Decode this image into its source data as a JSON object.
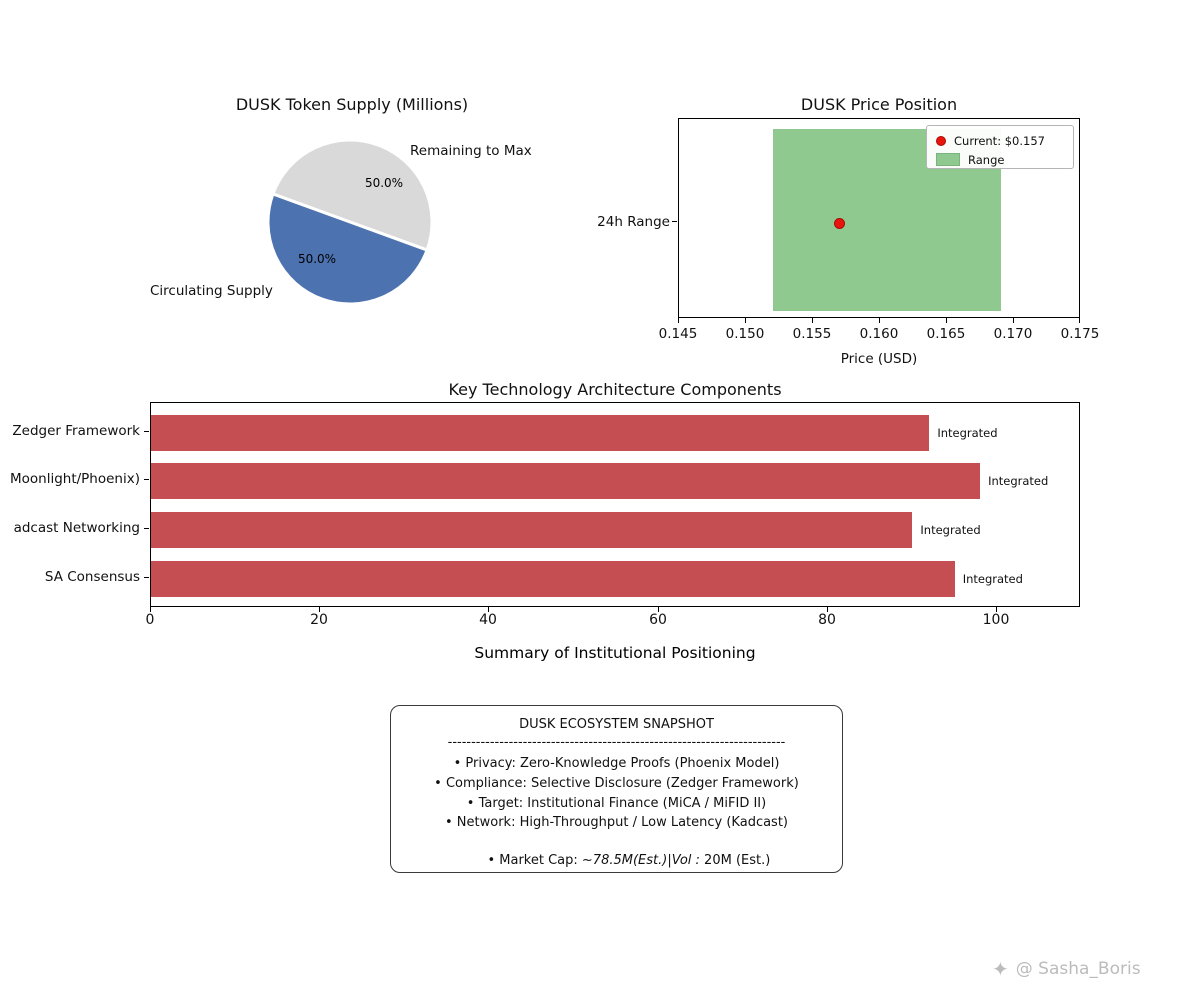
{
  "colors": {
    "pie_circulating": "#4c72b0",
    "pie_remaining": "#d9d9d9",
    "bar_red": "#c44e52",
    "range_green": "#8fc98f",
    "current_dot_red": "#e8150d",
    "watermark_gray": "#bcbcbc"
  },
  "pie": {
    "title": "DUSK Token Supply (Millions)",
    "label_remaining": "Remaining to Max",
    "label_circulating": "Circulating Supply",
    "pct_remaining": "50.0%",
    "pct_circulating": "50.0%"
  },
  "scatter": {
    "title": "DUSK Price Position",
    "ytick": "24h Range",
    "xlabel": "Price (USD)",
    "xticks": [
      "0.145",
      "0.150",
      "0.155",
      "0.160",
      "0.165",
      "0.170",
      "0.175"
    ],
    "legend": {
      "current": "Current: $0.157",
      "range": "Range"
    }
  },
  "bars": {
    "title": "Key Technology Architecture Components",
    "xlabel": "Summary of Institutional Positioning",
    "xticks": [
      "0",
      "20",
      "40",
      "60",
      "80",
      "100"
    ],
    "rows": [
      {
        "label": "Zedger Framework",
        "value": 92,
        "note": "Integrated"
      },
      {
        "label": "Moonlight/Phoenix)",
        "value": 98,
        "note": "Integrated"
      },
      {
        "label": "adcast Networking",
        "value": 90,
        "note": "Integrated"
      },
      {
        "label": "SA Consensus",
        "value": 95,
        "note": "Integrated"
      }
    ]
  },
  "snapshot": {
    "title": "DUSK ECOSYSTEM SNAPSHOT",
    "divider": "------------------------------------------------------------------------",
    "lines": [
      "• Privacy: Zero-Knowledge Proofs (Phoenix Model)",
      "• Compliance: Selective Disclosure (Zedger Framework)",
      "• Target: Institutional Finance (MiCA / MiFID II)",
      "• Network: High-Throughput / Low Latency (Kadcast)"
    ],
    "market_cap": {
      "prefix": "• Market Cap: ~",
      "math": "78.5M(Est.)|Vol :",
      "suffix": " 20M (Est.)"
    }
  },
  "watermark": {
    "icon": "✦",
    "text": "@ Sasha_Boris"
  },
  "chart_data": [
    {
      "type": "pie",
      "title": "DUSK Token Supply (Millions)",
      "labels": [
        "Remaining to Max",
        "Circulating Supply"
      ],
      "values": [
        50.0,
        50.0
      ],
      "value_labels": [
        "50.0%",
        "50.0%"
      ],
      "colors": [
        "#d9d9d9",
        "#4c72b0"
      ],
      "legend_position": "none"
    },
    {
      "type": "scatter",
      "title": "DUSK Price Position",
      "xlabel": "Price (USD)",
      "xlim": [
        0.145,
        0.175
      ],
      "xticks": [
        0.145,
        0.15,
        0.155,
        0.16,
        0.165,
        0.17,
        0.175
      ],
      "ytick_labels": [
        "24h Range"
      ],
      "points": [
        {
          "x": 0.157,
          "y": "24h Range",
          "label": "Current: $0.157",
          "color": "#e8150d"
        }
      ],
      "band": {
        "xmin": 0.152,
        "xmax": 0.169,
        "label": "Range",
        "color": "#8fc98f"
      },
      "legend_position": "upper right",
      "legend_entries": [
        "Current: $0.157",
        "Range"
      ]
    },
    {
      "type": "bar",
      "orientation": "horizontal",
      "title": "Key Technology Architecture Components",
      "xlabel": "Summary of Institutional Positioning",
      "categories": [
        "Zedger Framework",
        "Moonlight/Phoenix)",
        "adcast Networking",
        "SA Consensus"
      ],
      "values": [
        92,
        98,
        90,
        95
      ],
      "bar_labels": [
        "Integrated",
        "Integrated",
        "Integrated",
        "Integrated"
      ],
      "xlim": [
        0,
        110
      ],
      "xticks": [
        0,
        20,
        40,
        60,
        80,
        100
      ],
      "bar_color": "#c44e52",
      "grid": false
    },
    {
      "type": "table",
      "title": "DUSK ECOSYSTEM SNAPSHOT",
      "rows": [
        "Privacy: Zero-Knowledge Proofs (Phoenix Model)",
        "Compliance: Selective Disclosure (Zedger Framework)",
        "Target: Institutional Finance (MiCA / MiFID II)",
        "Network: High-Throughput / Low Latency (Kadcast)",
        "Market Cap: ~78.5M (Est.) | Vol: 20M (Est.)"
      ]
    }
  ]
}
